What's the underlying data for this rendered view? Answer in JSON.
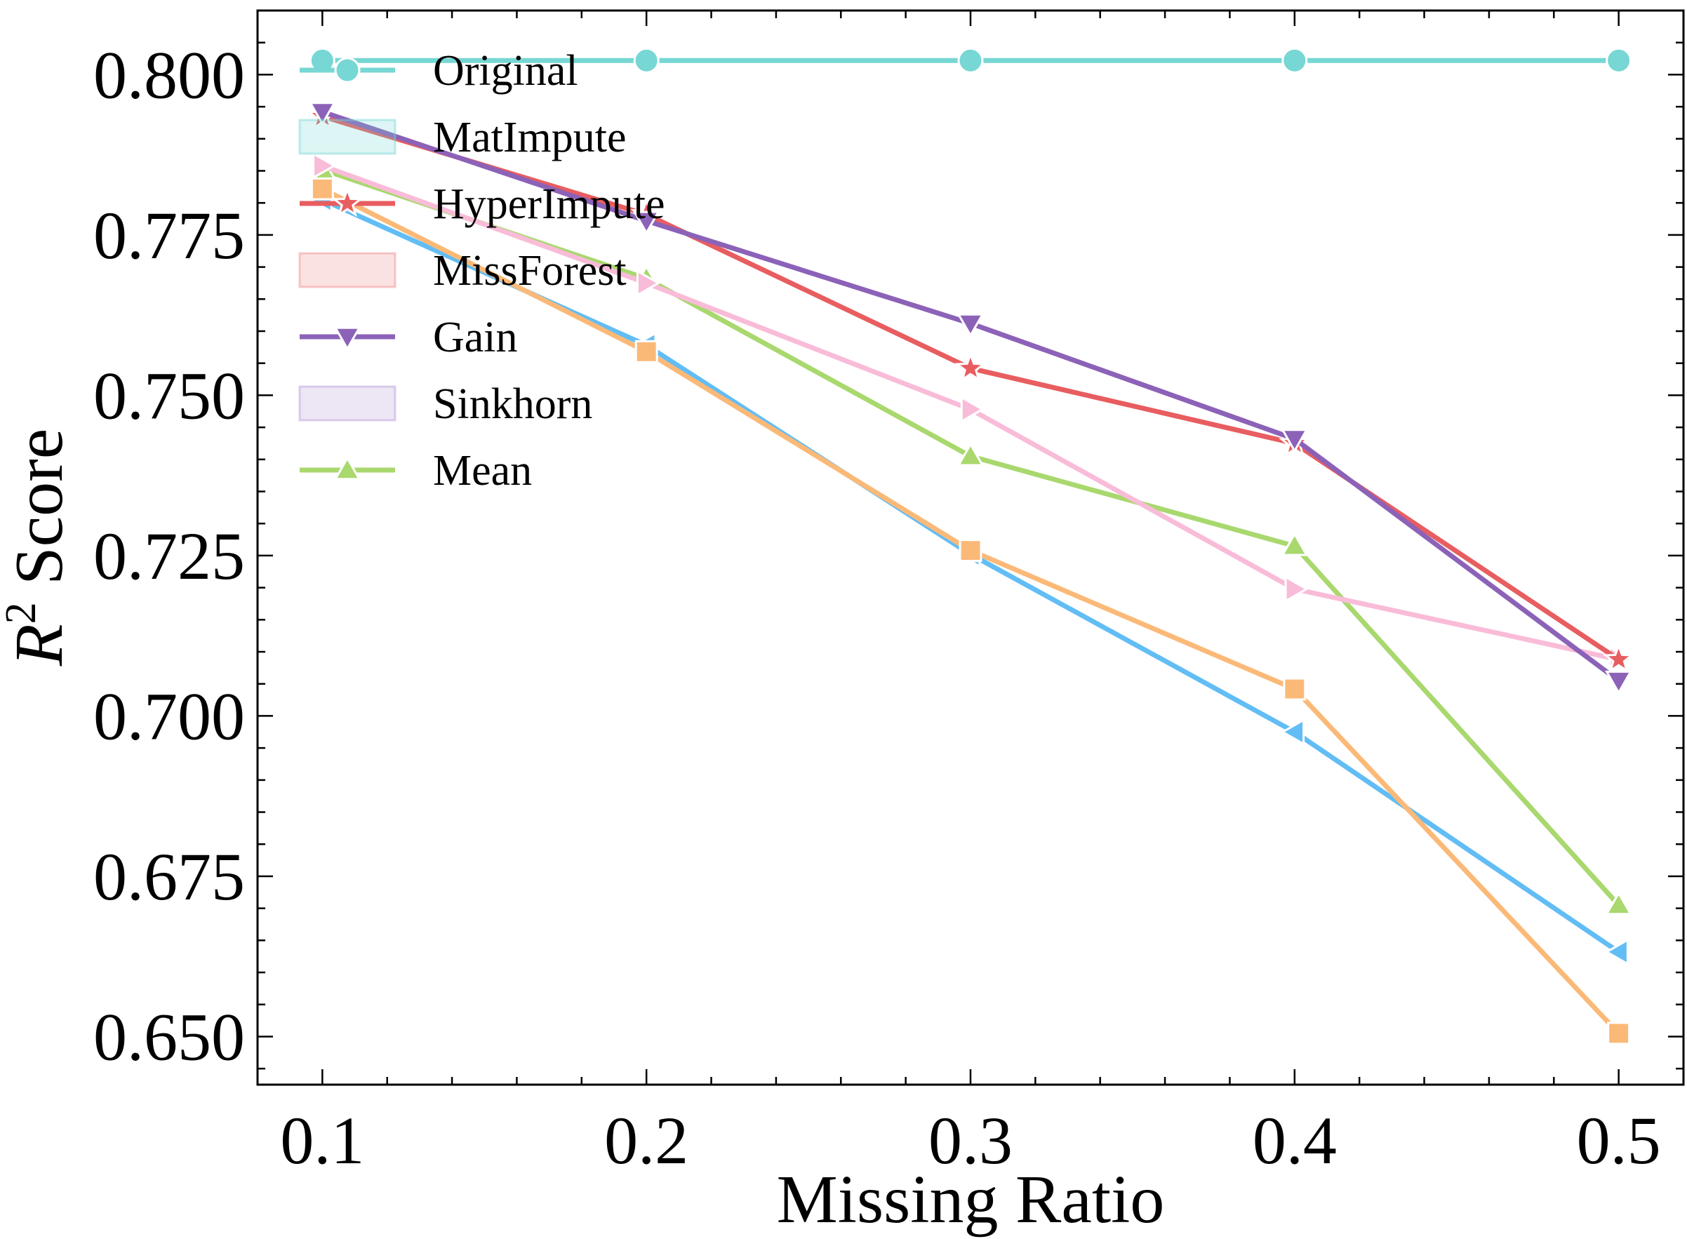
{
  "chart_data": {
    "type": "line",
    "xlabel": "Missing Ratio",
    "ylabel_main": "R",
    "ylabel_sup": "2",
    "ylabel_rest": " Score",
    "x": [
      0.1,
      0.2,
      0.3,
      0.4,
      0.5
    ],
    "xticks": [
      "0.1",
      "0.2",
      "0.3",
      "0.4",
      "0.5"
    ],
    "yticks": [
      "0.650",
      "0.675",
      "0.700",
      "0.725",
      "0.750",
      "0.775",
      "0.800"
    ],
    "yticks_values": [
      0.65,
      0.675,
      0.7,
      0.725,
      0.75,
      0.775,
      0.8
    ],
    "xlim": [
      0.08,
      0.52
    ],
    "ylim": [
      0.6425,
      0.81
    ],
    "grid": false,
    "legend_position": "top-left",
    "series": [
      {
        "name": "Original",
        "color": "#76d7d4",
        "marker": "circle",
        "values": [
          0.8022,
          0.8022,
          0.8022,
          0.8022,
          0.8022
        ]
      },
      {
        "name": "",
        "color": "#62bdf5",
        "marker": "triangle-left",
        "values": [
          0.7805,
          0.7578,
          0.7252,
          0.6975,
          0.6632
        ]
      },
      {
        "name": "",
        "color": "#fbb978",
        "marker": "square",
        "values": [
          0.7822,
          0.7568,
          0.7258,
          0.7042,
          0.6505
        ]
      },
      {
        "name": "Mean",
        "color": "#a9d86e",
        "marker": "triangle-up",
        "values": [
          0.7852,
          0.7682,
          0.7405,
          0.7265,
          0.6705
        ]
      },
      {
        "name": "",
        "color": "#f9bcd8",
        "marker": "triangle-right",
        "values": [
          0.7858,
          0.7675,
          0.7478,
          0.7198,
          0.7088
        ]
      },
      {
        "name": "HyperImpute",
        "color": "#e85d60",
        "marker": "star",
        "values": [
          0.7935,
          0.7782,
          0.7542,
          0.7425,
          0.7088
        ]
      },
      {
        "name": "Gain",
        "color": "#8c62b8",
        "marker": "triangle-down",
        "values": [
          0.7942,
          0.7772,
          0.7612,
          0.7432,
          0.7055
        ]
      }
    ],
    "legend": [
      {
        "label": "Original",
        "kind": "line",
        "color": "#76d7d4",
        "marker": "circle"
      },
      {
        "label": "MatImpute",
        "kind": "patch",
        "color": "#76d7d4"
      },
      {
        "label": "HyperImpute",
        "kind": "line",
        "color": "#e85d60",
        "marker": "star"
      },
      {
        "label": "MissForest",
        "kind": "patch",
        "color": "#f08a8c"
      },
      {
        "label": "Gain",
        "kind": "line",
        "color": "#8c62b8",
        "marker": "triangle-down"
      },
      {
        "label": "Sinkhorn",
        "kind": "patch",
        "color": "#b59ad6"
      },
      {
        "label": "Mean",
        "kind": "line",
        "color": "#a9d86e",
        "marker": "triangle-up"
      }
    ]
  }
}
